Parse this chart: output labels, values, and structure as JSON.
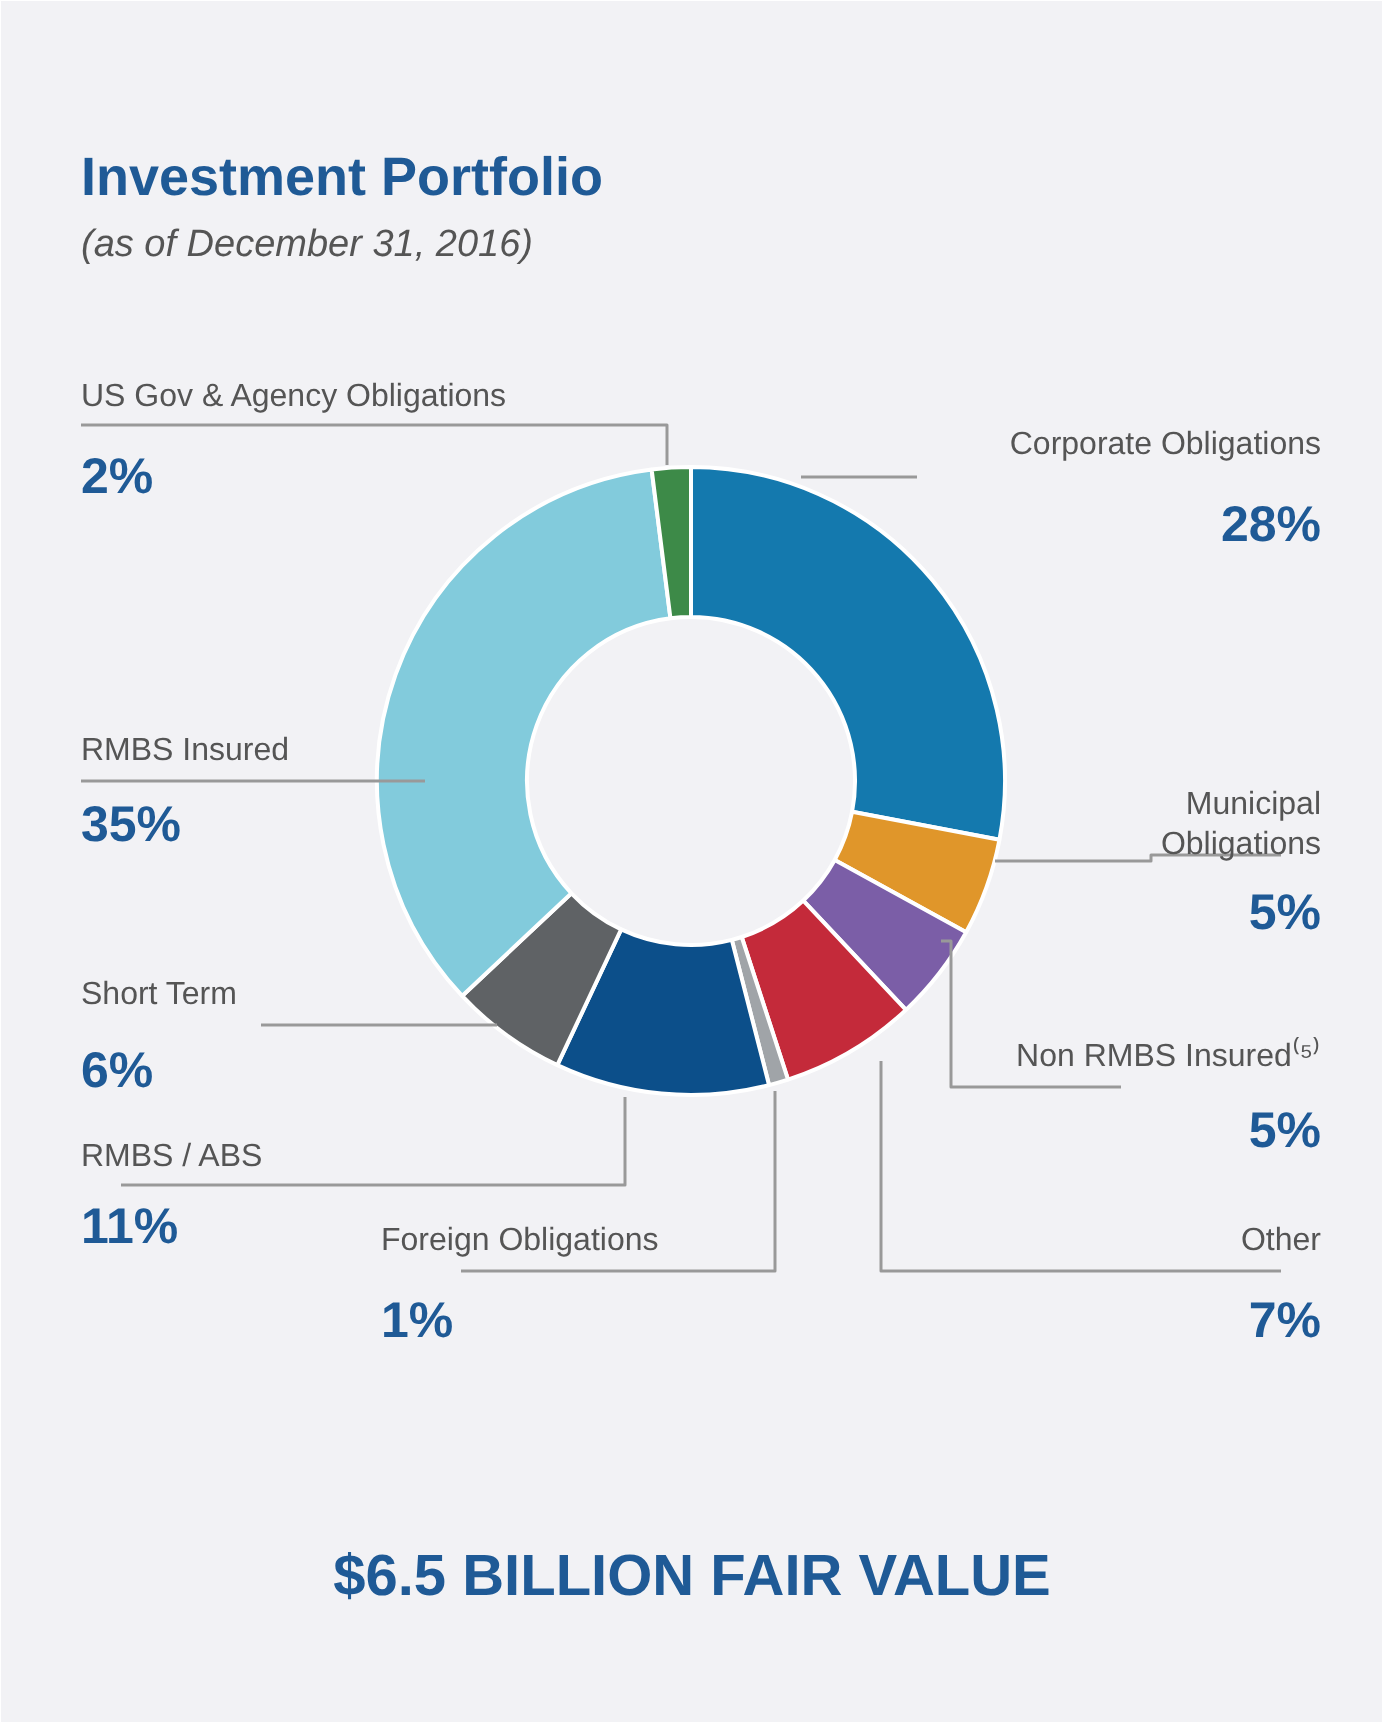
{
  "chart_data": {
    "type": "donut",
    "title": "Investment Portfolio",
    "subtitle": "(as of December 31, 2016)",
    "categories": [
      "Corporate Obligations",
      "Municipal Obligations",
      "Non RMBS Insured⁽⁵⁾",
      "Other",
      "Foreign Obligations",
      "RMBS / ABS",
      "Short Term",
      "RMBS Insured",
      "US Gov & Agency Obligations"
    ],
    "values": [
      28,
      5,
      5,
      7,
      1,
      11,
      6,
      35,
      2
    ],
    "value_labels": [
      "28%",
      "5%",
      "5%",
      "7%",
      "1%",
      "11%",
      "6%",
      "35%",
      "2%"
    ],
    "colors": [
      "#1479ae",
      "#e0962a",
      "#7b5ea7",
      "#c42a3a",
      "#a0a4a8",
      "#0c4f8a",
      "#5f6265",
      "#82cbdc",
      "#3d8a48"
    ],
    "annotations": [
      "$6.5 BILLION FAIR VALUE"
    ]
  }
}
